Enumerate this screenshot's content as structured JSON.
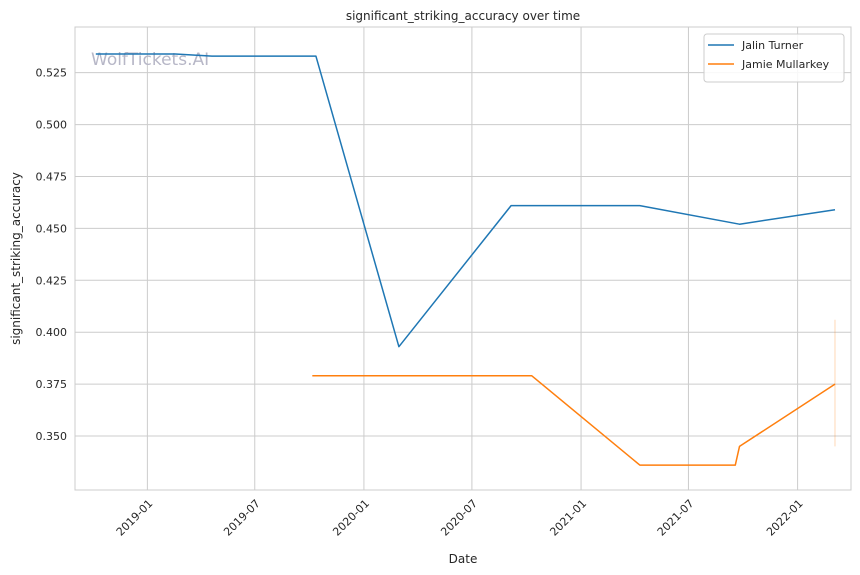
{
  "chart_data": {
    "type": "line",
    "title": "significant_striking_accuracy over time",
    "xlabel": "Date",
    "ylabel": "significant_striking_accuracy",
    "watermark": "WolfTickets.AI",
    "x_ticks": [
      "2019-01",
      "2019-07",
      "2020-01",
      "2020-07",
      "2021-01",
      "2021-07",
      "2022-01"
    ],
    "y_ticks": [
      "0.525",
      "0.500",
      "0.475",
      "0.450",
      "0.425",
      "0.400",
      "0.375",
      "0.350"
    ],
    "xlim": [
      "2018-09-01",
      "2022-04-01"
    ],
    "ylim": [
      0.324,
      0.547
    ],
    "grid": true,
    "legend_position": "top-right",
    "series": [
      {
        "name": "Jalin Turner",
        "color": "#1f77b4",
        "x": [
          "2018-10-06",
          "2019-02-17",
          "2019-04-20",
          "2019-10-12",
          "2020-02-29",
          "2020-09-05",
          "2021-04-10",
          "2021-09-25",
          "2022-03-05"
        ],
        "y": [
          0.534,
          0.534,
          0.533,
          0.533,
          0.393,
          0.461,
          0.461,
          0.452,
          0.459
        ]
      },
      {
        "name": "Jamie Mullarkey",
        "color": "#ff7f0e",
        "x": [
          "2019-10-06",
          "2020-10-10",
          "2021-04-10",
          "2021-09-18",
          "2021-09-25",
          "2022-03-05"
        ],
        "y": [
          0.379,
          0.379,
          0.336,
          0.336,
          0.345,
          0.375
        ]
      }
    ],
    "error_bar": {
      "series": "Jamie Mullarkey",
      "x": "2022-03-05",
      "low": 0.345,
      "high": 0.406
    }
  }
}
